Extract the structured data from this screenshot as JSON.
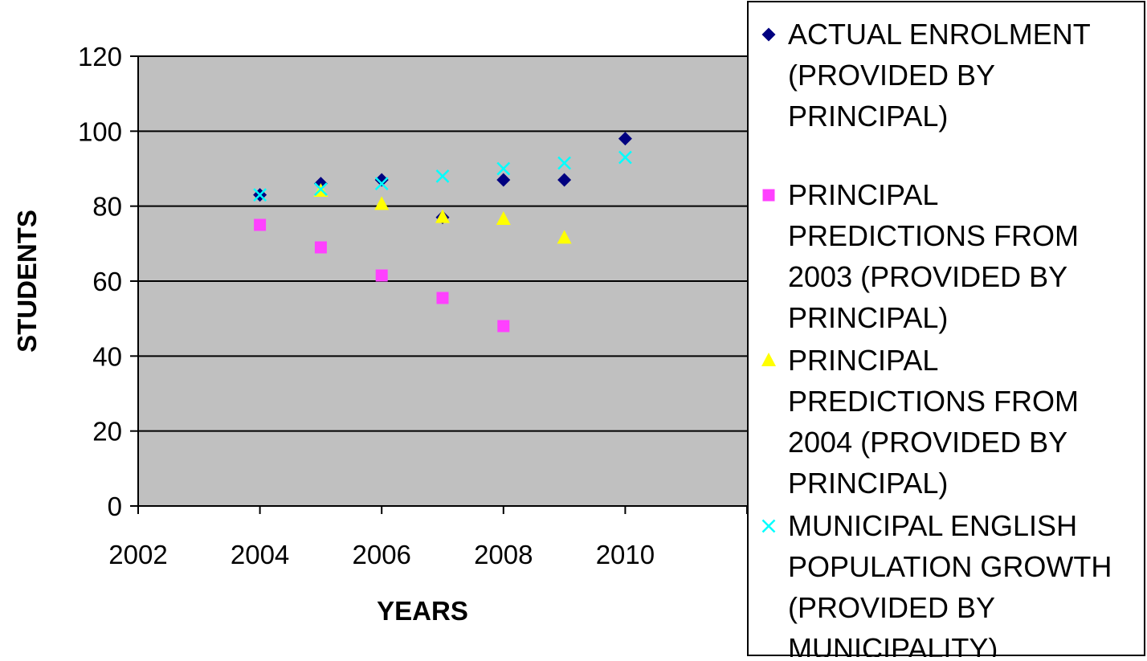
{
  "chart_data": {
    "type": "scatter",
    "title": "",
    "xlabel": "YEARS",
    "ylabel": "STUDENTS",
    "xlim": [
      2002,
      2010
    ],
    "ylim": [
      0,
      120
    ],
    "x_ticks": [
      "2002",
      "2004",
      "2006",
      "2008",
      "2010"
    ],
    "y_ticks": [
      "0",
      "20",
      "40",
      "60",
      "80",
      "100",
      "120"
    ],
    "grid": "horizontal",
    "plot_background": "#c0c0c0",
    "legend_position": "right",
    "series": [
      {
        "name": "ACTUAL ENROLMENT (PROVIDED BY PRINCIPAL)",
        "legend_lines": [
          "ACTUAL ENROLMENT",
          "(PROVIDED BY",
          "PRINCIPAL)"
        ],
        "marker": "diamond",
        "color": "#000080",
        "points": [
          [
            2004,
            83
          ],
          [
            2005,
            86
          ],
          [
            2006,
            87
          ],
          [
            2007,
            77
          ],
          [
            2008,
            87
          ],
          [
            2009,
            87
          ],
          [
            2010,
            98
          ]
        ]
      },
      {
        "name": "PRINCIPAL PREDICTIONS FROM 2003 (PROVIDED BY PRINCIPAL)",
        "legend_lines": [
          "PRINCIPAL",
          "PREDICTIONS FROM",
          "2003 (PROVIDED BY",
          "PRINCIPAL)"
        ],
        "marker": "square",
        "color": "#ff40ff",
        "points": [
          [
            2004,
            75
          ],
          [
            2005,
            69
          ],
          [
            2006,
            61.5
          ],
          [
            2007,
            55.5
          ],
          [
            2008,
            48
          ]
        ]
      },
      {
        "name": "PRINCIPAL PREDICTIONS FROM 2004 (PROVIDED BY PRINCIPAL)",
        "legend_lines": [
          "PRINCIPAL",
          "PREDICTIONS FROM",
          "2004 (PROVIDED BY",
          "PRINCIPAL)"
        ],
        "marker": "triangle",
        "color": "#ffff00",
        "points": [
          [
            2005,
            84
          ],
          [
            2006,
            80.5
          ],
          [
            2007,
            77
          ],
          [
            2008,
            76.5
          ],
          [
            2009,
            71.5
          ]
        ]
      },
      {
        "name": "MUNICIPAL ENGLISH POPULATION GROWTH (PROVIDED BY MUNICIPALITY)",
        "legend_lines": [
          "MUNICIPAL ENGLISH",
          "POPULATION GROWTH",
          "(PROVIDED BY",
          "MUNICIPALITY)"
        ],
        "marker": "x",
        "color": "#00ffff",
        "points": [
          [
            2004,
            83
          ],
          [
            2005,
            84.5
          ],
          [
            2006,
            86
          ],
          [
            2007,
            88
          ],
          [
            2008,
            90
          ],
          [
            2009,
            91.5
          ],
          [
            2010,
            93
          ]
        ]
      }
    ]
  }
}
